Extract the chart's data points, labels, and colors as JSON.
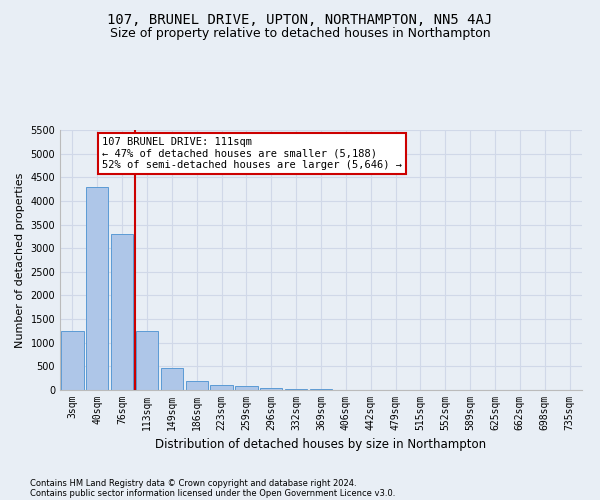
{
  "title": "107, BRUNEL DRIVE, UPTON, NORTHAMPTON, NN5 4AJ",
  "subtitle": "Size of property relative to detached houses in Northampton",
  "xlabel": "Distribution of detached houses by size in Northampton",
  "ylabel": "Number of detached properties",
  "footnote1": "Contains HM Land Registry data © Crown copyright and database right 2024.",
  "footnote2": "Contains public sector information licensed under the Open Government Licence v3.0.",
  "categories": [
    "3sqm",
    "40sqm",
    "76sqm",
    "113sqm",
    "149sqm",
    "186sqm",
    "223sqm",
    "259sqm",
    "296sqm",
    "332sqm",
    "369sqm",
    "406sqm",
    "442sqm",
    "479sqm",
    "515sqm",
    "552sqm",
    "589sqm",
    "625sqm",
    "662sqm",
    "698sqm",
    "735sqm"
  ],
  "values": [
    1250,
    4300,
    3300,
    1250,
    475,
    200,
    100,
    75,
    50,
    20,
    15,
    10,
    8,
    5,
    3,
    2,
    1,
    1,
    0,
    0,
    0
  ],
  "bar_color": "#aec6e8",
  "bar_edge_color": "#5b9bd5",
  "grid_color": "#d0d8e8",
  "background_color": "#e8eef5",
  "ylim": [
    0,
    5500
  ],
  "yticks": [
    0,
    500,
    1000,
    1500,
    2000,
    2500,
    3000,
    3500,
    4000,
    4500,
    5000,
    5500
  ],
  "annotation_text_line1": "107 BRUNEL DRIVE: 111sqm",
  "annotation_text_line2": "← 47% of detached houses are smaller (5,188)",
  "annotation_text_line3": "52% of semi-detached houses are larger (5,646) →",
  "annotation_box_color": "#ffffff",
  "annotation_border_color": "#cc0000",
  "red_line_x": 2.5,
  "title_fontsize": 10,
  "subtitle_fontsize": 9,
  "annotation_fontsize": 7.5,
  "tick_fontsize": 7,
  "ylabel_fontsize": 8,
  "xlabel_fontsize": 8.5,
  "footnote_fontsize": 6
}
